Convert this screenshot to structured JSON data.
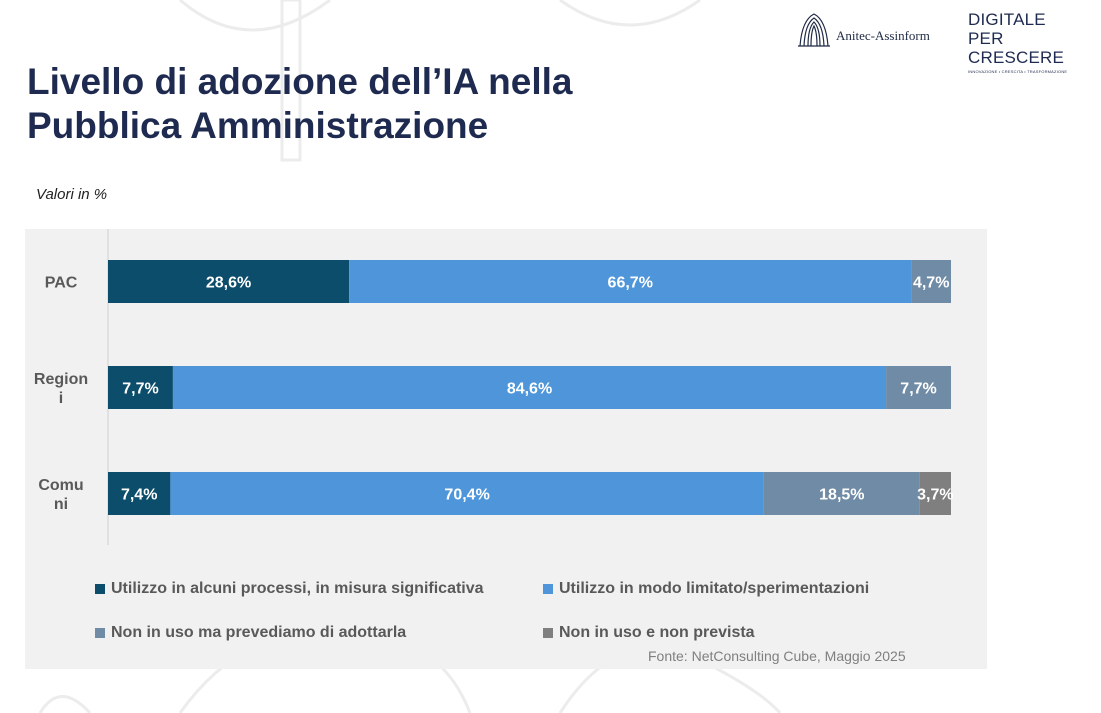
{
  "header": {
    "title_line1": "Livello di adozione dell’IA nella",
    "title_line2": "Pubblica Amministrazione",
    "subtitle": "Valori in %"
  },
  "logos": {
    "anitec": "Anitec-Assinform",
    "dpc_line1": "DIGITALE",
    "dpc_line2": "PER CRESCERE",
    "dpc_tagline": "INNOVAZIONE • CRESCITA • TRASFORMAZIONE"
  },
  "source": "Fonte: NetConsulting Cube, Maggio 2025",
  "chart_data": {
    "type": "bar",
    "orientation": "horizontal",
    "stacked": true,
    "categories": [
      "PAC",
      "Region i",
      "Comu ni"
    ],
    "series": [
      {
        "name": "Utilizzo in alcuni processi, in misura significativa",
        "color": "#0b4d6a",
        "values": [
          28.6,
          7.7,
          7.4
        ],
        "labels": [
          "28,6%",
          "7,7%",
          "7,4%"
        ]
      },
      {
        "name": "Utilizzo in modo limitato/sperimentazioni",
        "color": "#4e95d9",
        "values": [
          66.7,
          84.6,
          70.4
        ],
        "labels": [
          "66,7%",
          "84,6%",
          "70,4%"
        ]
      },
      {
        "name": "Non in uso ma prevediamo di adottarla",
        "color": "#6f8ba5",
        "values": [
          4.7,
          7.7,
          18.5
        ],
        "labels": [
          "4,7%",
          "7,7%",
          "18,5%"
        ]
      },
      {
        "name": "Non in uso e non prevista",
        "color": "#7f7f7f",
        "values": [
          0,
          0,
          3.7
        ],
        "labels": [
          "",
          "",
          "3,7%"
        ]
      }
    ],
    "xlim": [
      0,
      100
    ],
    "legend_position": "bottom",
    "grid": false
  }
}
